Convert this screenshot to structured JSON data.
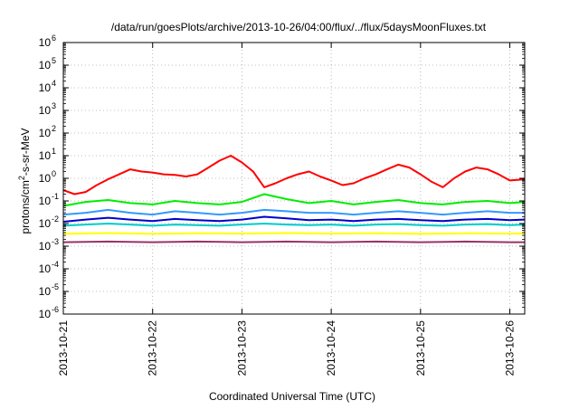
{
  "chart_data": {
    "type": "line",
    "title": "/data/run/goesPlots/archive/2013-10-26/04:00/flux/../flux/5daysMoonFluxes.txt",
    "xlabel": "Coordinated Universal Time (UTC)",
    "ylabel": {
      "prefix": "protons/cm",
      "superscript": "2",
      "suffix": "-s-sr-MeV"
    },
    "x_type": "date",
    "xlim": [
      "2013-10-21T00:00",
      "2013-10-26T04:00"
    ],
    "x_ticks": [
      "2013-10-21",
      "2013-10-22",
      "2013-10-23",
      "2013-10-24",
      "2013-10-25",
      "2013-10-26"
    ],
    "y_scale": "log",
    "ylim": [
      1e-06,
      1000000.0
    ],
    "y_ticks": [
      {
        "base": "10",
        "exp": "-6",
        "value": 1e-06
      },
      {
        "base": "10",
        "exp": "-5",
        "value": 1e-05
      },
      {
        "base": "10",
        "exp": "-4",
        "value": 0.0001
      },
      {
        "base": "10",
        "exp": "-3",
        "value": 0.001
      },
      {
        "base": "10",
        "exp": "-2",
        "value": 0.01
      },
      {
        "base": "10",
        "exp": "-1",
        "value": 0.1
      },
      {
        "base": "10",
        "exp": "0",
        "value": 1
      },
      {
        "base": "10",
        "exp": "1",
        "value": 10
      },
      {
        "base": "10",
        "exp": "2",
        "value": 100
      },
      {
        "base": "10",
        "exp": "3",
        "value": 1000
      },
      {
        "base": "10",
        "exp": "4",
        "value": 10000
      },
      {
        "base": "10",
        "exp": "5",
        "value": 100000
      },
      {
        "base": "10",
        "exp": "6",
        "value": 1000000
      }
    ],
    "grid": true,
    "legend": "none",
    "series": [
      {
        "color": "#ff0000",
        "x": [
          "2013-10-21T00:00",
          "2013-10-21T03:00",
          "2013-10-21T06:00",
          "2013-10-21T09:00",
          "2013-10-21T12:00",
          "2013-10-21T15:00",
          "2013-10-21T18:00",
          "2013-10-21T21:00",
          "2013-10-22T00:00",
          "2013-10-22T03:00",
          "2013-10-22T06:00",
          "2013-10-22T09:00",
          "2013-10-22T12:00",
          "2013-10-22T15:00",
          "2013-10-22T18:00",
          "2013-10-22T21:00",
          "2013-10-23T00:00",
          "2013-10-23T03:00",
          "2013-10-23T06:00",
          "2013-10-23T09:00",
          "2013-10-23T12:00",
          "2013-10-23T15:00",
          "2013-10-23T18:00",
          "2013-10-23T21:00",
          "2013-10-24T00:00",
          "2013-10-24T03:00",
          "2013-10-24T06:00",
          "2013-10-24T09:00",
          "2013-10-24T12:00",
          "2013-10-24T15:00",
          "2013-10-24T18:00",
          "2013-10-24T21:00",
          "2013-10-25T00:00",
          "2013-10-25T03:00",
          "2013-10-25T06:00",
          "2013-10-25T09:00",
          "2013-10-25T12:00",
          "2013-10-25T15:00",
          "2013-10-25T18:00",
          "2013-10-25T21:00",
          "2013-10-26T00:00",
          "2013-10-26T04:00"
        ],
        "y": [
          0.3,
          0.2,
          0.25,
          0.5,
          0.9,
          1.5,
          2.5,
          2,
          1.8,
          1.5,
          1.4,
          1.2,
          1.5,
          3,
          6,
          10,
          5,
          2,
          0.4,
          0.6,
          1,
          1.5,
          2,
          1.2,
          0.8,
          0.5,
          0.6,
          1,
          1.5,
          2.5,
          4,
          3,
          1.5,
          0.7,
          0.4,
          1,
          2,
          3,
          2.5,
          1.5,
          0.8,
          0.9
        ]
      },
      {
        "color": "#00ee00",
        "x": [
          "2013-10-21T00:00",
          "2013-10-21T06:00",
          "2013-10-21T12:00",
          "2013-10-21T18:00",
          "2013-10-22T00:00",
          "2013-10-22T06:00",
          "2013-10-22T12:00",
          "2013-10-22T18:00",
          "2013-10-23T00:00",
          "2013-10-23T06:00",
          "2013-10-23T12:00",
          "2013-10-23T18:00",
          "2013-10-24T00:00",
          "2013-10-24T06:00",
          "2013-10-24T12:00",
          "2013-10-24T18:00",
          "2013-10-25T00:00",
          "2013-10-25T06:00",
          "2013-10-25T12:00",
          "2013-10-25T18:00",
          "2013-10-26T00:00",
          "2013-10-26T04:00"
        ],
        "y": [
          0.06,
          0.09,
          0.11,
          0.08,
          0.07,
          0.1,
          0.08,
          0.07,
          0.09,
          0.2,
          0.12,
          0.08,
          0.1,
          0.07,
          0.09,
          0.11,
          0.08,
          0.07,
          0.09,
          0.1,
          0.08,
          0.09
        ]
      },
      {
        "color": "#3399ff",
        "x": [
          "2013-10-21T00:00",
          "2013-10-21T06:00",
          "2013-10-21T12:00",
          "2013-10-21T18:00",
          "2013-10-22T00:00",
          "2013-10-22T06:00",
          "2013-10-22T12:00",
          "2013-10-22T18:00",
          "2013-10-23T00:00",
          "2013-10-23T06:00",
          "2013-10-23T12:00",
          "2013-10-23T18:00",
          "2013-10-24T00:00",
          "2013-10-24T06:00",
          "2013-10-24T12:00",
          "2013-10-24T18:00",
          "2013-10-25T00:00",
          "2013-10-25T06:00",
          "2013-10-25T12:00",
          "2013-10-25T18:00",
          "2013-10-26T00:00",
          "2013-10-26T04:00"
        ],
        "y": [
          0.025,
          0.03,
          0.04,
          0.03,
          0.025,
          0.035,
          0.03,
          0.025,
          0.03,
          0.04,
          0.035,
          0.03,
          0.03,
          0.025,
          0.03,
          0.035,
          0.03,
          0.025,
          0.03,
          0.035,
          0.03,
          0.03
        ]
      },
      {
        "color": "#0000cc",
        "x": [
          "2013-10-21T00:00",
          "2013-10-21T06:00",
          "2013-10-21T12:00",
          "2013-10-21T18:00",
          "2013-10-22T00:00",
          "2013-10-22T06:00",
          "2013-10-22T12:00",
          "2013-10-22T18:00",
          "2013-10-23T00:00",
          "2013-10-23T06:00",
          "2013-10-23T12:00",
          "2013-10-23T18:00",
          "2013-10-24T00:00",
          "2013-10-24T06:00",
          "2013-10-24T12:00",
          "2013-10-24T18:00",
          "2013-10-25T00:00",
          "2013-10-25T06:00",
          "2013-10-25T12:00",
          "2013-10-25T18:00",
          "2013-10-26T00:00",
          "2013-10-26T04:00"
        ],
        "y": [
          0.012,
          0.015,
          0.018,
          0.015,
          0.013,
          0.016,
          0.014,
          0.013,
          0.015,
          0.02,
          0.017,
          0.014,
          0.015,
          0.013,
          0.015,
          0.016,
          0.014,
          0.013,
          0.015,
          0.016,
          0.014,
          0.015
        ]
      },
      {
        "color": "#00cccc",
        "x": [
          "2013-10-21T00:00",
          "2013-10-21T06:00",
          "2013-10-21T12:00",
          "2013-10-21T18:00",
          "2013-10-22T00:00",
          "2013-10-22T06:00",
          "2013-10-22T12:00",
          "2013-10-22T18:00",
          "2013-10-23T00:00",
          "2013-10-23T06:00",
          "2013-10-23T12:00",
          "2013-10-23T18:00",
          "2013-10-24T00:00",
          "2013-10-24T06:00",
          "2013-10-24T12:00",
          "2013-10-24T18:00",
          "2013-10-25T00:00",
          "2013-10-25T06:00",
          "2013-10-25T12:00",
          "2013-10-25T18:00",
          "2013-10-26T00:00",
          "2013-10-26T04:00"
        ],
        "y": [
          0.008,
          0.009,
          0.01,
          0.009,
          0.008,
          0.009,
          0.0085,
          0.008,
          0.009,
          0.01,
          0.009,
          0.0085,
          0.009,
          0.008,
          0.009,
          0.0095,
          0.0085,
          0.008,
          0.009,
          0.0095,
          0.0085,
          0.009
        ]
      },
      {
        "color": "#ffff00",
        "x": [
          "2013-10-21T00:00",
          "2013-10-21T12:00",
          "2013-10-22T00:00",
          "2013-10-22T12:00",
          "2013-10-23T00:00",
          "2013-10-23T12:00",
          "2013-10-24T00:00",
          "2013-10-24T12:00",
          "2013-10-25T00:00",
          "2013-10-25T12:00",
          "2013-10-26T00:00",
          "2013-10-26T04:00"
        ],
        "y": [
          0.0035,
          0.0038,
          0.0035,
          0.0037,
          0.0036,
          0.0038,
          0.0036,
          0.0037,
          0.0035,
          0.0037,
          0.0036,
          0.0036
        ]
      },
      {
        "color": "#993366",
        "x": [
          "2013-10-21T00:00",
          "2013-10-21T12:00",
          "2013-10-22T00:00",
          "2013-10-22T12:00",
          "2013-10-23T00:00",
          "2013-10-23T12:00",
          "2013-10-24T00:00",
          "2013-10-24T12:00",
          "2013-10-25T00:00",
          "2013-10-25T12:00",
          "2013-10-26T00:00",
          "2013-10-26T04:00"
        ],
        "y": [
          0.0015,
          0.0016,
          0.0015,
          0.0016,
          0.0015,
          0.0016,
          0.0015,
          0.0016,
          0.0015,
          0.0016,
          0.0015,
          0.0015
        ]
      }
    ]
  }
}
